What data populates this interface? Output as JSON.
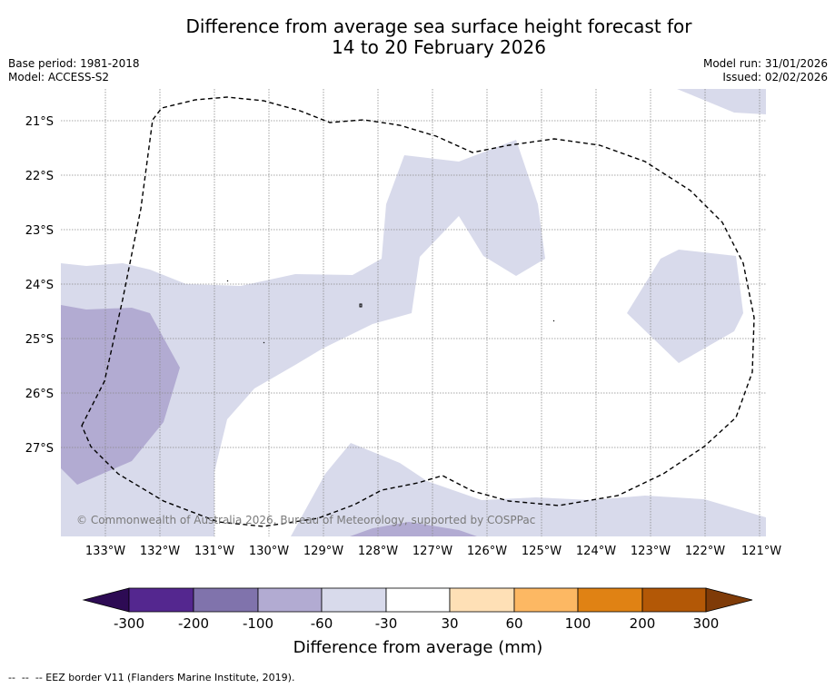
{
  "title": {
    "line1": "Difference from average sea surface height forecast for",
    "line2": "14 to 20 February 2026"
  },
  "meta": {
    "base_period": "Base period: 1981-2018",
    "model": "Model: ACCESS-S2",
    "model_run": "Model run: 31/01/2026",
    "issued": "Issued: 02/02/2026"
  },
  "map": {
    "lon_labels": [
      "133°W",
      "132°W",
      "131°W",
      "130°W",
      "129°W",
      "128°W",
      "127°W",
      "126°W",
      "125°W",
      "124°W",
      "123°W",
      "122°W",
      "121°W"
    ],
    "lat_labels": [
      "21°S",
      "22°S",
      "23°S",
      "24°S",
      "25°S",
      "26°S",
      "27°S"
    ],
    "credit": "© Commonwealth of Australia 2026, Bureau of Meteorology, supported by COSPPac",
    "border_style": "dashed"
  },
  "colorbar": {
    "ticks": [
      "-300",
      "-200",
      "-100",
      "-60",
      "-30",
      "30",
      "60",
      "100",
      "200",
      "300"
    ],
    "colors": [
      "#2d0b54",
      "#54278f",
      "#8073ac",
      "#b2abd2",
      "#d8daeb",
      "#ffffff",
      "#fee0b6",
      "#fdb863",
      "#e08214",
      "#b35806",
      "#7f3b08"
    ],
    "label": "Difference from average (mm)"
  },
  "footer": "--  --  -- EEZ border V11 (Flanders Marine Institute, 2019)."
}
